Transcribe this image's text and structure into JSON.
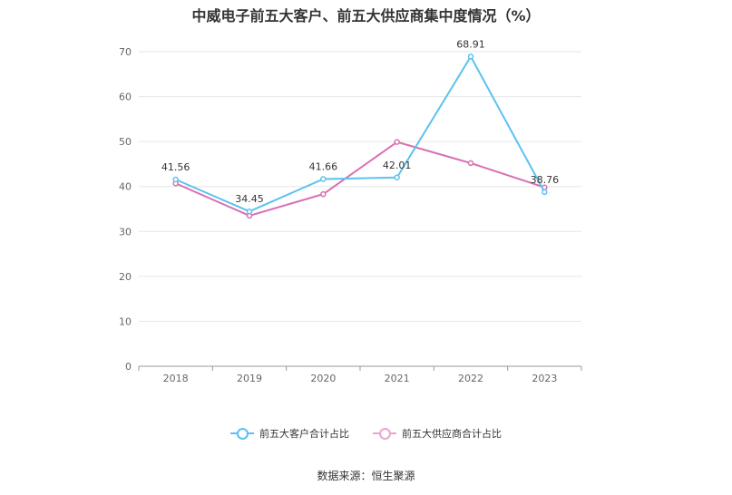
{
  "chart_data": {
    "type": "line",
    "title": "中威电子前五大客户、前五大供应商集中度情况（%）",
    "categories": [
      "2018",
      "2019",
      "2020",
      "2021",
      "2022",
      "2023"
    ],
    "ylim": [
      0,
      70
    ],
    "yticks": [
      "0",
      "10",
      "20",
      "30",
      "40",
      "50",
      "60",
      "70"
    ],
    "grid": true,
    "legend_position": "bottom-center",
    "series": [
      {
        "name": "前五大客户合计占比",
        "color": "#5bc2f0",
        "values": [
          41.56,
          34.45,
          41.66,
          42.01,
          68.91,
          38.76
        ],
        "labels": [
          "41.56",
          "34.45",
          "41.66",
          "42.01",
          "68.91",
          "38.76"
        ]
      },
      {
        "name": "前五大供应商合计占比",
        "color": "#d96fb3",
        "values": [
          40.7,
          33.5,
          38.3,
          49.9,
          45.2,
          39.8
        ]
      }
    ],
    "source": "数据来源：恒生聚源"
  }
}
